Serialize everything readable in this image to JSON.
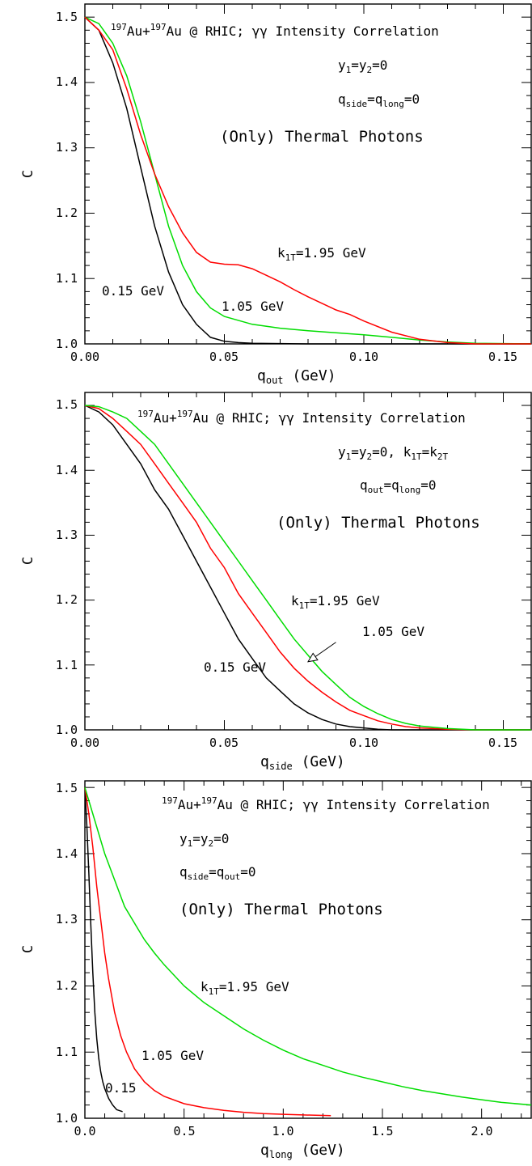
{
  "chart_data": [
    {
      "type": "line",
      "xlabel": "q",
      "xlabel_sub": "out",
      "xlabel_unit": " (GeV)",
      "ylabel": "C",
      "xlim": [
        0,
        0.16
      ],
      "ylim": [
        1.0,
        1.52
      ],
      "xticks": [
        0,
        0.05,
        0.1,
        0.15
      ],
      "xtick_labels": [
        "0.00",
        "0.05",
        "0.10",
        "0.15"
      ],
      "yticks": [
        1.0,
        1.1,
        1.2,
        1.3,
        1.4,
        1.5
      ],
      "ytick_labels": [
        "1.0",
        "1.1",
        "1.2",
        "1.3",
        "1.4",
        "1.5"
      ],
      "title_parts": {
        "sup1": "197",
        "a": "Au+",
        "sup2": "197",
        "b": "Au @ RHIC; γγ Intensity Correlation"
      },
      "annot_line1": {
        "t1": "y",
        "s1": "1",
        "t2": "=y",
        "s2": "2",
        "t3": "=0"
      },
      "annot_line2": {
        "t1": "q",
        "s1": "side",
        "t2": "=q",
        "s2": "long",
        "t3": "=0"
      },
      "thermal": "(Only) Thermal Photons",
      "labels": {
        "k": "k",
        "k_sub": "1T",
        "k_rest": "=1.95 GeV",
        "mid": "1.05 GeV",
        "low": "0.15 GeV"
      },
      "series": [
        {
          "color": "#000000",
          "x": [
            0,
            0.005,
            0.01,
            0.015,
            0.02,
            0.025,
            0.03,
            0.035,
            0.04,
            0.045,
            0.05,
            0.055,
            0.06,
            0.08,
            0.1,
            0.12,
            0.16
          ],
          "y": [
            1.5,
            1.48,
            1.43,
            1.36,
            1.27,
            1.18,
            1.11,
            1.06,
            1.03,
            1.01,
            1.004,
            1.002,
            1.001,
            1.0,
            1.0,
            1.0,
            1.0
          ]
        },
        {
          "color": "#00dd00",
          "x": [
            0,
            0.005,
            0.01,
            0.015,
            0.02,
            0.025,
            0.03,
            0.035,
            0.04,
            0.045,
            0.05,
            0.06,
            0.07,
            0.08,
            0.09,
            0.1,
            0.11,
            0.12,
            0.13,
            0.14,
            0.16
          ],
          "y": [
            1.5,
            1.49,
            1.46,
            1.41,
            1.34,
            1.26,
            1.18,
            1.12,
            1.08,
            1.055,
            1.042,
            1.03,
            1.024,
            1.02,
            1.017,
            1.014,
            1.01,
            1.006,
            1.003,
            1.001,
            1.0
          ]
        },
        {
          "color": "#ff0000",
          "x": [
            0,
            0.005,
            0.01,
            0.015,
            0.02,
            0.025,
            0.03,
            0.035,
            0.04,
            0.045,
            0.05,
            0.055,
            0.06,
            0.065,
            0.07,
            0.075,
            0.08,
            0.085,
            0.09,
            0.095,
            0.1,
            0.11,
            0.12,
            0.13,
            0.14,
            0.16
          ],
          "y": [
            1.5,
            1.48,
            1.45,
            1.39,
            1.32,
            1.26,
            1.21,
            1.17,
            1.14,
            1.125,
            1.122,
            1.121,
            1.115,
            1.105,
            1.095,
            1.083,
            1.072,
            1.062,
            1.052,
            1.045,
            1.035,
            1.018,
            1.007,
            1.002,
            1.0,
            1.0
          ]
        }
      ]
    },
    {
      "type": "line",
      "xlabel": "q",
      "xlabel_sub": "side",
      "xlabel_unit": " (GeV)",
      "ylabel": "C",
      "xlim": [
        0,
        0.16
      ],
      "ylim": [
        1.0,
        1.52
      ],
      "xticks": [
        0,
        0.05,
        0.1,
        0.15
      ],
      "xtick_labels": [
        "0.00",
        "0.05",
        "0.10",
        "0.15"
      ],
      "yticks": [
        1.0,
        1.1,
        1.2,
        1.3,
        1.4,
        1.5
      ],
      "ytick_labels": [
        "1.0",
        "1.1",
        "1.2",
        "1.3",
        "1.4",
        "1.5"
      ],
      "title_parts": {
        "sup1": "197",
        "a": "Au+",
        "sup2": "197",
        "b": "Au @ RHIC; γγ Intensity Correlation"
      },
      "annot_line1": {
        "t1": "y",
        "s1": "1",
        "t2": "=y",
        "s2": "2",
        "t3": "=0, k",
        "s3": "1T",
        "t4": "=k",
        "s4": "2T"
      },
      "annot_line2": {
        "t1": "q",
        "s1": "out",
        "t2": "=q",
        "s2": "long",
        "t3": "=0"
      },
      "thermal": "(Only) Thermal Photons",
      "labels": {
        "k": "k",
        "k_sub": "1T",
        "k_rest": "=1.95 GeV",
        "mid": "1.05 GeV",
        "low": "0.15 GeV"
      },
      "series": [
        {
          "color": "#000000",
          "x": [
            0,
            0.005,
            0.01,
            0.015,
            0.02,
            0.025,
            0.03,
            0.035,
            0.04,
            0.045,
            0.05,
            0.055,
            0.06,
            0.065,
            0.07,
            0.075,
            0.08,
            0.085,
            0.09,
            0.095,
            0.1,
            0.105,
            0.11,
            0.12,
            0.13,
            0.16
          ],
          "y": [
            1.5,
            1.49,
            1.47,
            1.44,
            1.41,
            1.37,
            1.34,
            1.3,
            1.26,
            1.22,
            1.18,
            1.14,
            1.11,
            1.08,
            1.06,
            1.04,
            1.026,
            1.016,
            1.009,
            1.005,
            1.003,
            1.001,
            1.0,
            1.0,
            1.0,
            1.0
          ]
        },
        {
          "color": "#ff0000",
          "x": [
            0,
            0.005,
            0.01,
            0.015,
            0.02,
            0.025,
            0.03,
            0.035,
            0.04,
            0.045,
            0.05,
            0.055,
            0.06,
            0.065,
            0.07,
            0.075,
            0.08,
            0.085,
            0.09,
            0.095,
            0.1,
            0.105,
            0.11,
            0.115,
            0.12,
            0.13,
            0.14,
            0.16
          ],
          "y": [
            1.5,
            1.495,
            1.48,
            1.46,
            1.44,
            1.41,
            1.38,
            1.35,
            1.32,
            1.28,
            1.25,
            1.21,
            1.18,
            1.15,
            1.12,
            1.095,
            1.075,
            1.058,
            1.043,
            1.03,
            1.022,
            1.014,
            1.009,
            1.005,
            1.003,
            1.001,
            1.0,
            1.0
          ]
        },
        {
          "color": "#00dd00",
          "x": [
            0,
            0.005,
            0.01,
            0.015,
            0.02,
            0.025,
            0.03,
            0.035,
            0.04,
            0.045,
            0.05,
            0.055,
            0.06,
            0.065,
            0.07,
            0.075,
            0.08,
            0.085,
            0.09,
            0.095,
            0.1,
            0.105,
            0.11,
            0.115,
            0.12,
            0.13,
            0.14,
            0.16
          ],
          "y": [
            1.5,
            1.498,
            1.49,
            1.48,
            1.46,
            1.44,
            1.41,
            1.38,
            1.35,
            1.32,
            1.29,
            1.26,
            1.23,
            1.2,
            1.17,
            1.14,
            1.115,
            1.09,
            1.07,
            1.05,
            1.036,
            1.025,
            1.016,
            1.01,
            1.006,
            1.002,
            1.0,
            1.0
          ]
        }
      ],
      "arrow": {
        "from": [
          0.09,
          1.135
        ],
        "to": [
          0.08,
          1.105
        ]
      }
    },
    {
      "type": "line",
      "xlabel": "q",
      "xlabel_sub": "long",
      "xlabel_unit": " (GeV)",
      "ylabel": "C",
      "xlim": [
        0,
        2.25
      ],
      "ylim": [
        1.0,
        1.51
      ],
      "xticks": [
        0,
        0.5,
        1.0,
        1.5,
        2.0
      ],
      "xtick_labels": [
        "0.0",
        "0.5",
        "1.0",
        "1.5",
        "2.0"
      ],
      "yticks": [
        1.0,
        1.1,
        1.2,
        1.3,
        1.4,
        1.5
      ],
      "ytick_labels": [
        "1.0",
        "1.1",
        "1.2",
        "1.3",
        "1.4",
        "1.5"
      ],
      "title_parts": {
        "sup1": "197",
        "a": "Au+",
        "sup2": "197",
        "b": "Au @ RHIC; γγ Intensity Correlation"
      },
      "annot_line1": {
        "t1": "y",
        "s1": "1",
        "t2": "=y",
        "s2": "2",
        "t3": "=0"
      },
      "annot_line2": {
        "t1": "q",
        "s1": "side",
        "t2": "=q",
        "s2": "out",
        "t3": "=0"
      },
      "thermal": "(Only) Thermal Photons",
      "labels": {
        "k": "k",
        "k_sub": "1T",
        "k_rest": "=1.95 GeV",
        "mid": "1.05 GeV",
        "low": "0.15"
      },
      "series": [
        {
          "color": "#000000",
          "x": [
            0,
            0.01,
            0.02,
            0.03,
            0.04,
            0.05,
            0.06,
            0.07,
            0.08,
            0.09,
            0.1,
            0.12,
            0.14,
            0.16,
            0.19
          ],
          "y": [
            1.5,
            1.44,
            1.37,
            1.29,
            1.22,
            1.16,
            1.12,
            1.09,
            1.07,
            1.055,
            1.045,
            1.03,
            1.02,
            1.013,
            1.01
          ]
        },
        {
          "color": "#ff0000",
          "x": [
            0,
            0.02,
            0.04,
            0.06,
            0.08,
            0.1,
            0.12,
            0.15,
            0.18,
            0.21,
            0.25,
            0.3,
            0.35,
            0.4,
            0.5,
            0.6,
            0.7,
            0.8,
            0.9,
            1.0,
            1.1,
            1.24
          ],
          "y": [
            1.5,
            1.46,
            1.41,
            1.35,
            1.3,
            1.25,
            1.21,
            1.16,
            1.125,
            1.1,
            1.075,
            1.055,
            1.042,
            1.033,
            1.022,
            1.016,
            1.012,
            1.009,
            1.007,
            1.006,
            1.005,
            1.004
          ]
        },
        {
          "color": "#00dd00",
          "x": [
            0,
            0.05,
            0.1,
            0.15,
            0.2,
            0.25,
            0.3,
            0.35,
            0.4,
            0.5,
            0.6,
            0.7,
            0.8,
            0.9,
            1.0,
            1.1,
            1.2,
            1.3,
            1.4,
            1.5,
            1.6,
            1.7,
            1.8,
            1.9,
            2.0,
            2.1,
            2.25
          ],
          "y": [
            1.5,
            1.45,
            1.4,
            1.36,
            1.32,
            1.295,
            1.27,
            1.25,
            1.232,
            1.2,
            1.175,
            1.155,
            1.135,
            1.118,
            1.103,
            1.09,
            1.08,
            1.07,
            1.062,
            1.055,
            1.048,
            1.042,
            1.037,
            1.032,
            1.028,
            1.024,
            1.02
          ]
        }
      ]
    }
  ]
}
